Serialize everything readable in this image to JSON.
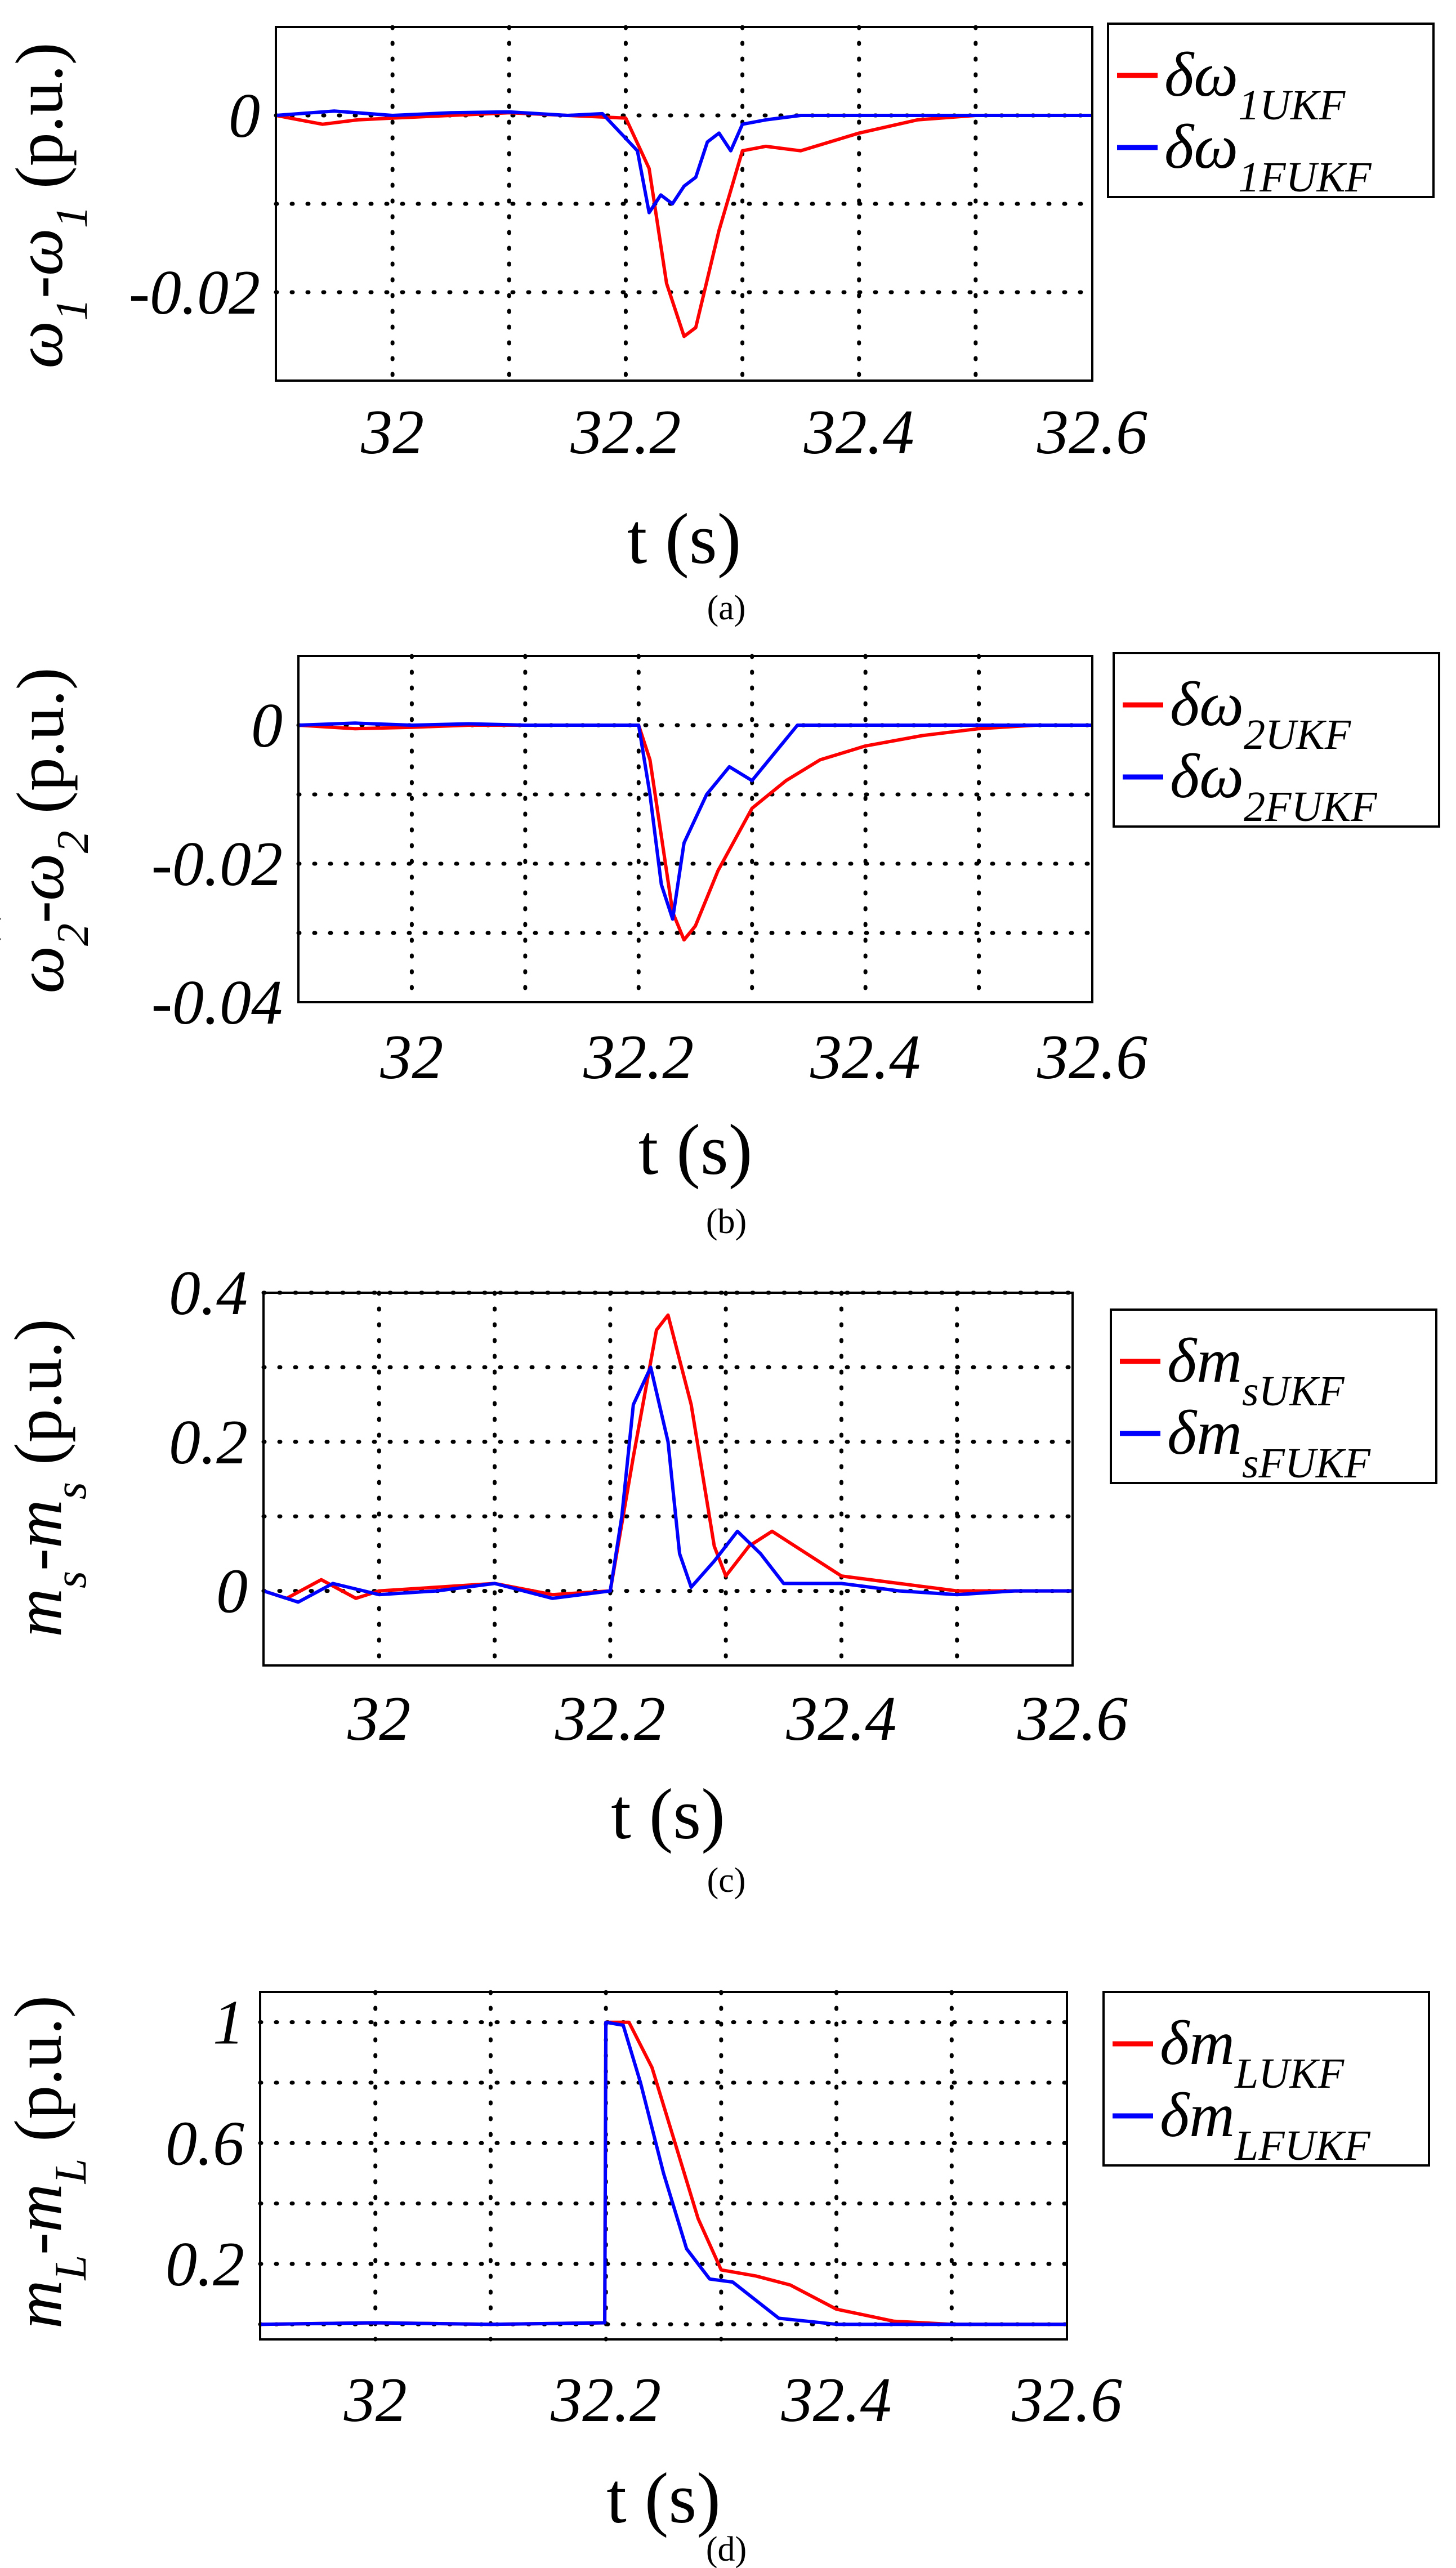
{
  "colors": {
    "red": "#ff0000",
    "blue": "#0000ff"
  },
  "chart_data": [
    {
      "type": "line",
      "caption": "(a)",
      "xlabel": "t (s)",
      "ylabel": {
        "hat_symbol": "ω",
        "hat_sub": "1",
        "minus": "-",
        "symbol": "ω",
        "sub": "1",
        "units": " (p.u.)"
      },
      "xlim": [
        31.9,
        32.6
      ],
      "ylim": [
        -0.03,
        0.01
      ],
      "xgrid": [
        32.0,
        32.1,
        32.2,
        32.3,
        32.4,
        32.5
      ],
      "ygrid": [
        0,
        -0.01,
        -0.02
      ],
      "xticks": [
        {
          "v": 32.0,
          "label": "32"
        },
        {
          "v": 32.2,
          "label": "32.2"
        },
        {
          "v": 32.4,
          "label": "32.4"
        },
        {
          "v": 32.6,
          "label": "32.6"
        }
      ],
      "yticks": [
        {
          "v": 0,
          "label": "0"
        },
        {
          "v": -0.02,
          "label": "-0.02"
        }
      ],
      "legend_position": "right",
      "series": [
        {
          "name": "red",
          "legend": {
            "prefix": "δω",
            "sub": "1UKF"
          },
          "x": [
            31.9,
            31.94,
            31.97,
            32.0,
            32.05,
            32.1,
            32.15,
            32.2,
            32.22,
            32.235,
            32.25,
            32.26,
            32.28,
            32.3,
            32.32,
            32.35,
            32.4,
            32.45,
            32.5,
            32.55,
            32.6
          ],
          "y": [
            0,
            -0.001,
            -0.0005,
            -0.0003,
            0,
            0.0003,
            0,
            -0.0003,
            -0.006,
            -0.019,
            -0.025,
            -0.024,
            -0.013,
            -0.004,
            -0.0035,
            -0.004,
            -0.002,
            -0.0005,
            0,
            0,
            0
          ]
        },
        {
          "name": "blue",
          "legend": {
            "prefix": "δω",
            "sub": "1FUKF"
          },
          "x": [
            31.9,
            31.95,
            32.0,
            32.05,
            32.1,
            32.15,
            32.18,
            32.21,
            32.22,
            32.23,
            32.24,
            32.25,
            32.26,
            32.27,
            32.28,
            32.29,
            32.3,
            32.32,
            32.35,
            32.4,
            32.5,
            32.6
          ],
          "y": [
            0,
            0.0005,
            0,
            0.0003,
            0.0004,
            0,
            0.0002,
            -0.004,
            -0.011,
            -0.009,
            -0.01,
            -0.008,
            -0.007,
            -0.003,
            -0.002,
            -0.004,
            -0.001,
            -0.0005,
            0,
            0,
            0,
            0
          ]
        }
      ]
    },
    {
      "type": "line",
      "caption": "(b)",
      "xlabel": "t (s)",
      "ylabel": {
        "hat_symbol": "ω",
        "hat_sub": "2",
        "minus": "-",
        "symbol": "ω",
        "sub": "2",
        "units": " (p.u.)"
      },
      "xlim": [
        31.9,
        32.6
      ],
      "ylim": [
        -0.04,
        0.01
      ],
      "xgrid": [
        32.0,
        32.1,
        32.2,
        32.3,
        32.4,
        32.5
      ],
      "ygrid": [
        0,
        -0.01,
        -0.02,
        -0.03
      ],
      "xticks": [
        {
          "v": 32.0,
          "label": "32"
        },
        {
          "v": 32.2,
          "label": "32.2"
        },
        {
          "v": 32.4,
          "label": "32.4"
        },
        {
          "v": 32.6,
          "label": "32.6"
        }
      ],
      "yticks": [
        {
          "v": 0,
          "label": "0"
        },
        {
          "v": -0.02,
          "label": "-0.02"
        },
        {
          "v": -0.04,
          "label": "-0.04"
        }
      ],
      "legend_position": "right",
      "series": [
        {
          "name": "red",
          "legend": {
            "prefix": "δω",
            "sub": "2UKF"
          },
          "x": [
            31.9,
            31.95,
            32.0,
            32.05,
            32.1,
            32.15,
            32.2,
            32.21,
            32.22,
            32.23,
            32.24,
            32.25,
            32.27,
            32.3,
            32.33,
            32.36,
            32.4,
            32.45,
            32.5,
            32.55,
            32.6
          ],
          "y": [
            0,
            -0.0005,
            -0.0003,
            0,
            0,
            0,
            0,
            -0.005,
            -0.016,
            -0.027,
            -0.031,
            -0.029,
            -0.021,
            -0.012,
            -0.008,
            -0.005,
            -0.003,
            -0.0015,
            -0.0005,
            0,
            0
          ]
        },
        {
          "name": "blue",
          "legend": {
            "prefix": "δω",
            "sub": "2FUKF"
          },
          "x": [
            31.9,
            31.95,
            32.0,
            32.05,
            32.1,
            32.15,
            32.2,
            32.21,
            32.22,
            32.23,
            32.24,
            32.26,
            32.28,
            32.3,
            32.32,
            32.34,
            32.4,
            32.5,
            32.6
          ],
          "y": [
            0,
            0.0003,
            0,
            0.0002,
            0,
            0,
            0,
            -0.01,
            -0.023,
            -0.028,
            -0.017,
            -0.01,
            -0.006,
            -0.008,
            -0.004,
            0,
            0,
            0,
            0
          ]
        }
      ]
    },
    {
      "type": "line",
      "caption": "(c)",
      "xlabel": "t (s)",
      "ylabel": {
        "hat_symbol": "m",
        "hat_sub": "s",
        "minus": "-",
        "symbol": "m",
        "sub": "s",
        "units": " (p.u.)"
      },
      "xlim": [
        31.9,
        32.6
      ],
      "ylim": [
        -0.1,
        0.4
      ],
      "xgrid": [
        32.0,
        32.1,
        32.2,
        32.3,
        32.4,
        32.5
      ],
      "ygrid": [
        0.4,
        0.3,
        0.2,
        0.1,
        0
      ],
      "xticks": [
        {
          "v": 32.0,
          "label": "32"
        },
        {
          "v": 32.2,
          "label": "32.2"
        },
        {
          "v": 32.4,
          "label": "32.4"
        },
        {
          "v": 32.6,
          "label": "32.6"
        }
      ],
      "yticks": [
        {
          "v": 0.4,
          "label": "0.4"
        },
        {
          "v": 0.2,
          "label": "0.2"
        },
        {
          "v": 0,
          "label": "0"
        }
      ],
      "legend_position": "right",
      "series": [
        {
          "name": "red",
          "legend": {
            "prefix": "δm",
            "sub": "sUKF"
          },
          "x": [
            31.9,
            31.92,
            31.95,
            31.98,
            32.0,
            32.05,
            32.1,
            32.15,
            32.2,
            32.22,
            32.24,
            32.25,
            32.27,
            32.29,
            32.3,
            32.32,
            32.34,
            32.37,
            32.4,
            32.45,
            32.5,
            32.55,
            32.6
          ],
          "y": [
            0,
            -0.01,
            0.015,
            -0.01,
            0,
            0.005,
            0.01,
            -0.005,
            0,
            0.18,
            0.35,
            0.37,
            0.25,
            0.06,
            0.02,
            0.06,
            0.08,
            0.05,
            0.02,
            0.01,
            0,
            0,
            0
          ]
        },
        {
          "name": "blue",
          "legend": {
            "prefix": "δm",
            "sub": "sFUKF"
          },
          "x": [
            31.9,
            31.93,
            31.96,
            32.0,
            32.05,
            32.1,
            32.15,
            32.2,
            32.21,
            32.22,
            32.235,
            32.25,
            32.26,
            32.27,
            32.29,
            32.31,
            32.33,
            32.35,
            32.4,
            32.45,
            32.5,
            32.55,
            32.6
          ],
          "y": [
            0,
            -0.015,
            0.01,
            -0.005,
            0,
            0.01,
            -0.01,
            0,
            0.1,
            0.25,
            0.3,
            0.2,
            0.05,
            0.005,
            0.04,
            0.08,
            0.05,
            0.01,
            0.01,
            0,
            -0.005,
            0,
            0
          ]
        }
      ]
    },
    {
      "type": "line",
      "caption": "(d)",
      "xlabel": "t (s)",
      "ylabel": {
        "hat_symbol": "m",
        "hat_sub": "L",
        "minus": "-",
        "symbol": "m",
        "sub": "L",
        "units": " (p.u.)"
      },
      "xlim": [
        31.9,
        32.6
      ],
      "ylim": [
        -0.05,
        1.1
      ],
      "xgrid": [
        32.0,
        32.1,
        32.2,
        32.3,
        32.4,
        32.5
      ],
      "ygrid": [
        1.0,
        0.8,
        0.6,
        0.4,
        0.2,
        0
      ],
      "xticks": [
        {
          "v": 32.0,
          "label": "32"
        },
        {
          "v": 32.2,
          "label": "32.2"
        },
        {
          "v": 32.4,
          "label": "32.4"
        },
        {
          "v": 32.6,
          "label": "32.6"
        }
      ],
      "yticks": [
        {
          "v": 1.0,
          "label": "1"
        },
        {
          "v": 0.6,
          "label": "0.6"
        },
        {
          "v": 0.2,
          "label": "0.2"
        }
      ],
      "legend_position": "right",
      "series": [
        {
          "name": "red",
          "legend": {
            "prefix": "δm",
            "sub": "LUKF"
          },
          "x": [
            31.9,
            32.0,
            32.1,
            32.199,
            32.2,
            32.22,
            32.24,
            32.26,
            32.28,
            32.3,
            32.33,
            32.36,
            32.4,
            32.45,
            32.5,
            32.6
          ],
          "y": [
            0,
            0.005,
            0,
            0.005,
            1.0,
            1.0,
            0.85,
            0.6,
            0.35,
            0.18,
            0.16,
            0.13,
            0.05,
            0.01,
            0,
            0
          ]
        },
        {
          "name": "blue",
          "legend": {
            "prefix": "δm",
            "sub": "LFUKF"
          },
          "x": [
            31.9,
            32.0,
            32.1,
            32.199,
            32.2,
            32.215,
            32.23,
            32.25,
            32.27,
            32.29,
            32.31,
            32.33,
            32.35,
            32.4,
            32.5,
            32.6
          ],
          "y": [
            0,
            0.005,
            0,
            0.005,
            1.0,
            0.99,
            0.8,
            0.5,
            0.25,
            0.15,
            0.14,
            0.08,
            0.02,
            0,
            0,
            0
          ]
        }
      ]
    }
  ]
}
